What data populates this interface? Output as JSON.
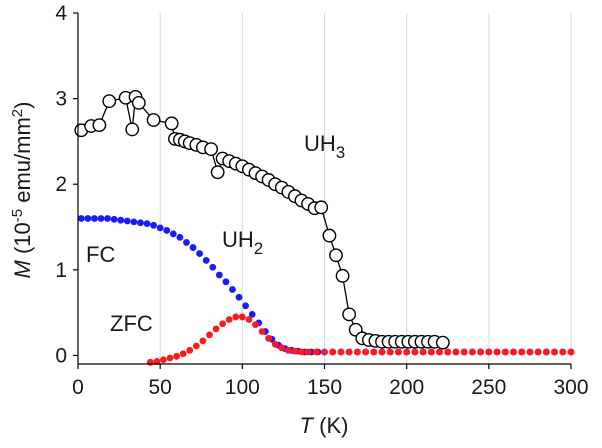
{
  "chart_data": {
    "type": "scatter",
    "title": "",
    "xlabel": {
      "symbol": "T",
      "unit": " (K)"
    },
    "ylabel": {
      "symbol": "M",
      "pre": " (10",
      "sup1": "-5",
      "mid": " emu/mm",
      "sup2": "2",
      "post": ")"
    },
    "xlim": [
      0,
      300
    ],
    "ylim": [
      -0.1,
      4
    ],
    "xticks": [
      0,
      50,
      100,
      150,
      200,
      250,
      300
    ],
    "yticks": [
      0,
      1,
      2,
      3,
      4
    ],
    "grid": "vertical",
    "colors": {
      "blue": "#1a1aff",
      "red": "#ff1a1a",
      "open": "#000000"
    },
    "annotations": [
      {
        "id": "uh3",
        "text": "UH",
        "sub": "3"
      },
      {
        "id": "uh2",
        "text": "UH",
        "sub": "2"
      },
      {
        "id": "fc",
        "text": "FC"
      },
      {
        "id": "zfc",
        "text": "ZFC"
      }
    ],
    "series": [
      {
        "style": "open-circle-line",
        "color": "#000000",
        "x": [
          2,
          8,
          13,
          19,
          29,
          33,
          35,
          37,
          46,
          57,
          59,
          62,
          65,
          68,
          72,
          76,
          81,
          85,
          88,
          92,
          96,
          100,
          104,
          108,
          112,
          116,
          120,
          124,
          128,
          132,
          136,
          140,
          144,
          148,
          153,
          157,
          161,
          165,
          169,
          173,
          177,
          181,
          185,
          189,
          193,
          197,
          201,
          205,
          209,
          213,
          217,
          222
        ],
        "y": [
          2.63,
          2.68,
          2.69,
          2.97,
          3.01,
          2.64,
          3.02,
          2.95,
          2.75,
          2.71,
          2.53,
          2.52,
          2.5,
          2.48,
          2.46,
          2.43,
          2.41,
          2.14,
          2.3,
          2.27,
          2.24,
          2.21,
          2.17,
          2.13,
          2.09,
          2.05,
          2.0,
          1.96,
          1.91,
          1.86,
          1.81,
          1.77,
          1.72,
          1.73,
          1.4,
          1.17,
          0.93,
          0.48,
          0.3,
          0.2,
          0.18,
          0.17,
          0.16,
          0.16,
          0.16,
          0.16,
          0.16,
          0.16,
          0.16,
          0.16,
          0.16,
          0.15
        ]
      },
      {
        "style": "filled-dot",
        "color": "#1a1aff",
        "x": [
          2,
          6,
          10,
          14,
          18,
          22,
          26,
          30,
          34,
          38,
          42,
          46,
          50,
          54,
          58,
          62,
          66,
          70,
          74,
          78,
          82,
          86,
          90,
          94,
          98,
          102,
          106,
          110,
          114,
          118,
          122,
          126,
          130,
          134,
          138,
          142,
          146,
          150,
          155,
          160,
          165,
          170,
          175,
          180,
          185,
          190,
          195,
          200,
          205,
          210,
          215,
          220,
          225,
          230,
          235,
          240,
          245,
          250,
          255,
          260,
          265,
          270,
          275,
          280,
          285,
          290,
          295,
          300
        ],
        "y": [
          1.6,
          1.6,
          1.6,
          1.6,
          1.6,
          1.59,
          1.58,
          1.57,
          1.56,
          1.55,
          1.54,
          1.52,
          1.49,
          1.46,
          1.42,
          1.38,
          1.32,
          1.26,
          1.19,
          1.11,
          1.03,
          0.94,
          0.86,
          0.77,
          0.68,
          0.58,
          0.48,
          0.38,
          0.28,
          0.19,
          0.12,
          0.08,
          0.06,
          0.05,
          0.04,
          0.04,
          0.04,
          0.04,
          0.04,
          0.04,
          0.04,
          0.04,
          0.04,
          0.04,
          0.04,
          0.04,
          0.04,
          0.04,
          0.04,
          0.04,
          0.04,
          0.04,
          0.04,
          0.04,
          0.04,
          0.04,
          0.04,
          0.04,
          0.04,
          0.04,
          0.04,
          0.04,
          0.04,
          0.04,
          0.04,
          0.04,
          0.04,
          0.04
        ]
      },
      {
        "style": "filled-dot",
        "color": "#ff1a1a",
        "x": [
          44,
          48,
          52,
          56,
          60,
          64,
          68,
          72,
          76,
          80,
          84,
          88,
          92,
          96,
          100,
          104,
          108,
          112,
          116,
          120,
          124,
          128,
          132,
          136,
          140,
          145,
          150,
          155,
          160,
          165,
          170,
          175,
          180,
          185,
          190,
          195,
          200,
          205,
          210,
          215,
          220,
          225,
          230,
          235,
          240,
          245,
          250,
          255,
          260,
          265,
          270,
          275,
          280,
          285,
          290,
          295,
          300
        ],
        "y": [
          -0.08,
          -0.07,
          -0.05,
          -0.03,
          -0.01,
          0.02,
          0.06,
          0.11,
          0.17,
          0.24,
          0.31,
          0.37,
          0.42,
          0.45,
          0.45,
          0.42,
          0.36,
          0.28,
          0.2,
          0.13,
          0.09,
          0.06,
          0.05,
          0.04,
          0.04,
          0.04,
          0.04,
          0.04,
          0.04,
          0.04,
          0.04,
          0.04,
          0.04,
          0.04,
          0.04,
          0.04,
          0.04,
          0.04,
          0.04,
          0.04,
          0.04,
          0.04,
          0.04,
          0.04,
          0.04,
          0.04,
          0.04,
          0.04,
          0.04,
          0.04,
          0.04,
          0.04,
          0.04,
          0.04,
          0.04,
          0.04,
          0.04
        ]
      }
    ]
  }
}
